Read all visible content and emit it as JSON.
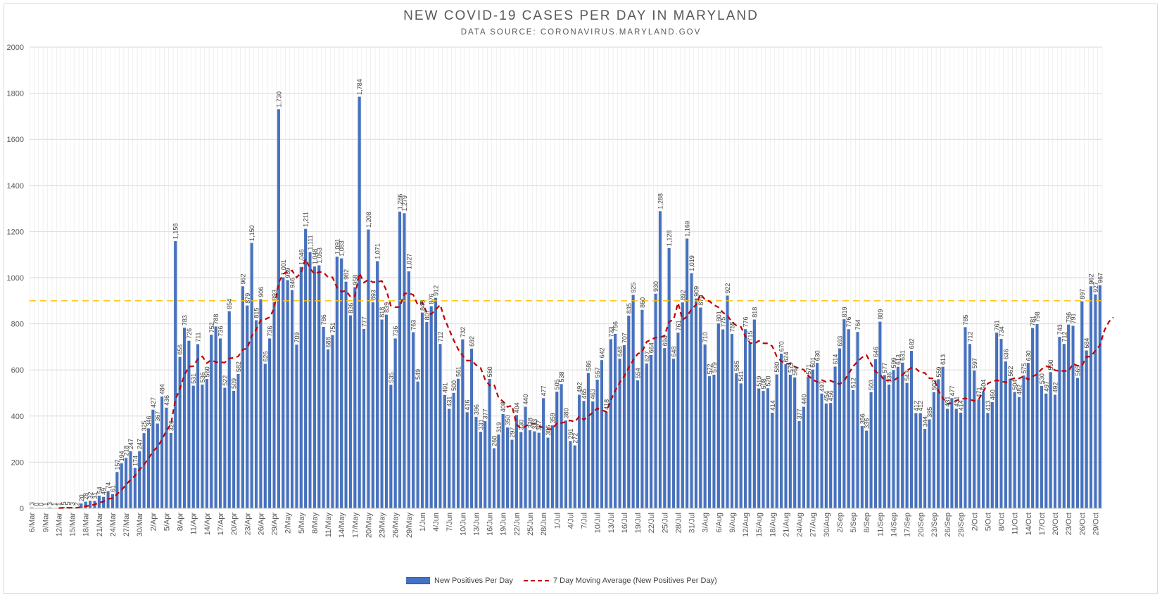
{
  "chart_data": {
    "type": "bar",
    "title": "NEW COVID-19 CASES PER DAY IN MARYLAND",
    "subtitle": "DATA SOURCE: CORONAVIRUS.MARYLAND.GOV",
    "xlabel": "",
    "ylabel": "",
    "ylim": [
      0,
      2000
    ],
    "yticks": [
      0,
      200,
      400,
      600,
      800,
      1000,
      1200,
      1400,
      1600,
      1800,
      2000
    ],
    "reference_line": 900,
    "x_tick_labels": [
      "6/Mar",
      "9/Mar",
      "12/Mar",
      "15/Mar",
      "18/Mar",
      "21/Mar",
      "24/Mar",
      "27/Mar",
      "30/Mar",
      "2/Apr",
      "5/Apr",
      "8/Apr",
      "11/Apr",
      "14/Apr",
      "17/Apr",
      "20/Apr",
      "23/Apr",
      "26/Apr",
      "29/Apr",
      "2/May",
      "5/May",
      "8/May",
      "11/May",
      "14/May",
      "17/May",
      "20/May",
      "23/May",
      "26/May",
      "29/May",
      "1/Jun",
      "4/Jun",
      "7/Jun",
      "10/Jun",
      "13/Jun",
      "16/Jun",
      "19/Jun",
      "22/Jun",
      "25/Jun",
      "28/Jun",
      "1/Jul",
      "4/Jul",
      "7/Jul",
      "10/Jul",
      "13/Jul",
      "16/Jul",
      "19/Jul",
      "22/Jul",
      "25/Jul",
      "28/Jul",
      "31/Jul",
      "3/Aug",
      "6/Aug",
      "9/Aug",
      "12/Aug",
      "15/Aug",
      "18/Aug",
      "21/Aug",
      "24/Aug",
      "27/Aug",
      "30/Aug",
      "2/Sep",
      "5/Sep",
      "8/Sep",
      "11/Sep",
      "14/Sep",
      "17/Sep",
      "20/Sep",
      "23/Sep",
      "26/Sep",
      "29/Sep",
      "2/Oct",
      "5/Oct",
      "8/Oct",
      "11/Oct",
      "14/Oct",
      "17/Oct",
      "20/Oct",
      "23/Oct",
      "26/Oct",
      "29/Oct"
    ],
    "series": [
      {
        "name": "New Positives Per Day",
        "type": "bar",
        "color": "#4472c4",
        "values": [
          3,
          0,
          0,
          1,
          3,
          1,
          1,
          5,
          5,
          3,
          2,
          20,
          28,
          32,
          31,
          54,
          49,
          74,
          61,
          157,
          194,
          218,
          247,
          174,
          247,
          325,
          346,
          427,
          367,
          484,
          436,
          326,
          1158,
          656,
          783,
          726,
          531,
          711,
          536,
          560,
          752,
          788,
          736,
          522,
          854,
          509,
          582,
          962,
          879,
          1150,
          815,
          906,
          626,
          736,
          893,
          1730,
          1001,
          989,
          946,
          709,
          1046,
          1211,
          1111,
          1048,
          1053,
          786,
          688,
          751,
          1091,
          1083,
          982,
          836,
          958,
          1784,
          777,
          1208,
          893,
          1071,
          818,
          839,
          535,
          736,
          1286,
          1279,
          1027,
          763,
          549,
          848,
          807,
          876,
          912,
          712,
          491,
          431,
          500,
          561,
          732,
          416,
          692,
          396,
          331,
          377,
          560,
          260,
          319,
          408,
          350,
          297,
          404,
          330,
          440,
          338,
          333,
          327,
          477,
          306,
          359,
          505,
          538,
          380,
          291,
          272,
          492,
          465,
          586,
          463,
          557,
          642,
          418,
          733,
          756,
          648,
          707,
          835,
          925,
          554,
          860,
          627,
          664,
          930,
          1288,
          694,
          1128,
          648,
          761,
          892,
          1169,
          1019,
          909,
          870,
          710,
          572,
          579,
          801,
          775,
          922,
          755,
          585,
          541,
          776,
          715,
          818,
          519,
          508,
          520,
          414,
          580,
          670,
          624,
          579,
          567,
          377,
          440,
          571,
          601,
          630,
          497,
          454,
          456,
          614,
          693,
          819,
          776,
          512,
          764,
          356,
          336,
          503,
          646,
          809,
          577,
          536,
          599,
          613,
          631,
          543,
          682,
          412,
          412,
          344,
          385,
          503,
          559,
          613,
          431,
          477,
          431,
          414,
          785,
          712,
          597,
          471,
          504,
          413,
          460,
          761,
          734,
          636,
          562,
          504,
          482,
          575,
          630,
          781,
          798,
          530,
          497,
          590,
          492,
          743,
          712,
          796,
          791,
          565,
          897,
          684,
          962,
          927,
          967
        ]
      },
      {
        "name": "7 Day Moving Average (New Positives Per Day)",
        "type": "line",
        "color": "#c00000",
        "style": "dashed",
        "values": [
          null,
          null,
          null,
          null,
          null,
          null,
          1.3,
          1.9,
          2.7,
          2.7,
          2.9,
          5.0,
          9.0,
          12.3,
          16.6,
          24.0,
          29.4,
          40.1,
          44.3,
          61.1,
          79.7,
          102.4,
          124.2,
          141.4,
          167.6,
          189.7,
          215.6,
          247.4,
          266.1,
          298.7,
          336.3,
          365.1,
          471.1,
          518.6,
          577.3,
          614.3,
          616.4,
          647.6,
          658.6,
          629.7,
          643.3,
          633.4,
          633.4,
          632.1,
          650.4,
          652.4,
          658.9,
          688.3,
          692.9,
          747.7,
          773.9,
          815.7,
          819.7,
          828.6,
          866.4,
          979.4,
          1016.1,
          1027.3,
          1031.1,
          1001.4,
          1021.4,
          1080.7,
          1040.6,
          1015.6,
          1025.1,
          1023.3,
          1002.3,
          1001.6,
          957.4,
          939.6,
          943.0,
          918.0,
          921.4,
          1019.3,
          979.1,
          991.0,
          980.4,
          982.0,
          986.0,
          945.4,
          878.4,
          872.3,
          873.0,
          931.1,
          932.6,
          925.7,
          882.1,
          892.9,
          848.3,
          841.9,
          861.4,
          882.6,
          820.0,
          775.1,
          729.3,
          690.1,
          662.0,
          640.4,
          641.3,
          621.3,
          608.9,
          559.1,
          532.7,
          537.3,
          479.6,
          463.3,
          440.0,
          445.0,
          362.4,
          347.1,
          355.4,
          366.7,
          367.4,
          356.0,
          350.0,
          342.6,
          343.7,
          369.7,
          369.9,
          374.7,
          381.0,
          375.0,
          398.7,
          383.9,
          399.3,
          415.3,
          433.4,
          425.6,
          418.9,
          468.3,
          510.1,
          545.9,
          572.3,
          609.6,
          642.4,
          669.6,
          679.4,
          722.0,
          731.6,
          740.6,
          740.1,
          749.3,
          808.7,
          818.3,
          891.0,
          816.7,
          832.1,
          864.9,
          881.9,
          929.4,
          904.8,
          897.7,
          881.6,
          871.7,
          849.4,
          835.4,
          808.1,
          792.6,
          787.0,
          746.0,
          717.7,
          713.7,
          726.3,
          715.7,
          715.4,
          702.7,
          658.0,
          638.1,
          627.0,
          627.9,
          614.0,
          606.6,
          601.0,
          575.9,
          558.0,
          547.9,
          556.1,
          548.4,
          553.7,
          544.4,
          538.9,
          552.3,
          584.4,
          614.7,
          637.3,
          654.4,
          664.0,
          626.4,
          592.6,
          580.9,
          553.3,
          556.3,
          553.6,
          567.4,
          578.3,
          597.6,
          609.1,
          605.6,
          588.4,
          587.1,
          563.9,
          563.4,
          510.0,
          477.7,
          453.1,
          456.3,
          467.6,
          471.9,
          477.6,
          471.1,
          466.3,
          473.4,
          505.6,
          540.9,
          550.9,
          555.1,
          551.3,
          545.7,
          557.6,
          564.6,
          563.3,
          572.4,
          557.9,
          571.7,
          581.4,
          603.4,
          616.0,
          611.4,
          598.9,
          594.9,
          595.9,
          594.6,
          626.7,
          618.6,
          618.0,
          656.6,
          658.6,
          684.9,
          706.9,
          771.7,
          808.9,
          827.9
        ]
      }
    ]
  }
}
